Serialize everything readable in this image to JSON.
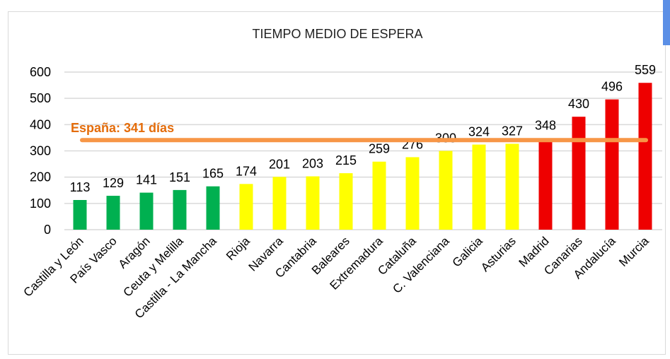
{
  "chart_data": {
    "type": "bar",
    "title": "TIEMPO MEDIO DE ESPERA",
    "xlabel": "",
    "ylabel": "",
    "ylim": [
      0,
      600
    ],
    "yticks": [
      0,
      100,
      200,
      300,
      400,
      500,
      600
    ],
    "grid": true,
    "categories": [
      "Castilla y León",
      "País Vasco",
      "Aragón",
      "Ceuta y Melilla",
      "Castilla - La Mancha",
      "Rioja",
      "Navarra",
      "Cantabria",
      "Baleares",
      "Extremadura",
      "Cataluña",
      "C. Valenciana",
      "Galicia",
      "Asturias",
      "Madrid",
      "Canarias",
      "Andalucía",
      "Murcia"
    ],
    "values": [
      113,
      129,
      141,
      151,
      165,
      174,
      201,
      203,
      215,
      259,
      276,
      300,
      324,
      327,
      348,
      430,
      496,
      559
    ],
    "bar_colors": [
      "#00b050",
      "#00b050",
      "#00b050",
      "#00b050",
      "#00b050",
      "#ffff00",
      "#ffff00",
      "#ffff00",
      "#ffff00",
      "#ffff00",
      "#ffff00",
      "#ffff00",
      "#ffff00",
      "#ffff00",
      "#ee0000",
      "#ee0000",
      "#ee0000",
      "#ee0000"
    ],
    "reference_line": {
      "value": 341,
      "label": "España: 341 días",
      "color": "#f79646",
      "label_color": "#e46c0a"
    }
  }
}
